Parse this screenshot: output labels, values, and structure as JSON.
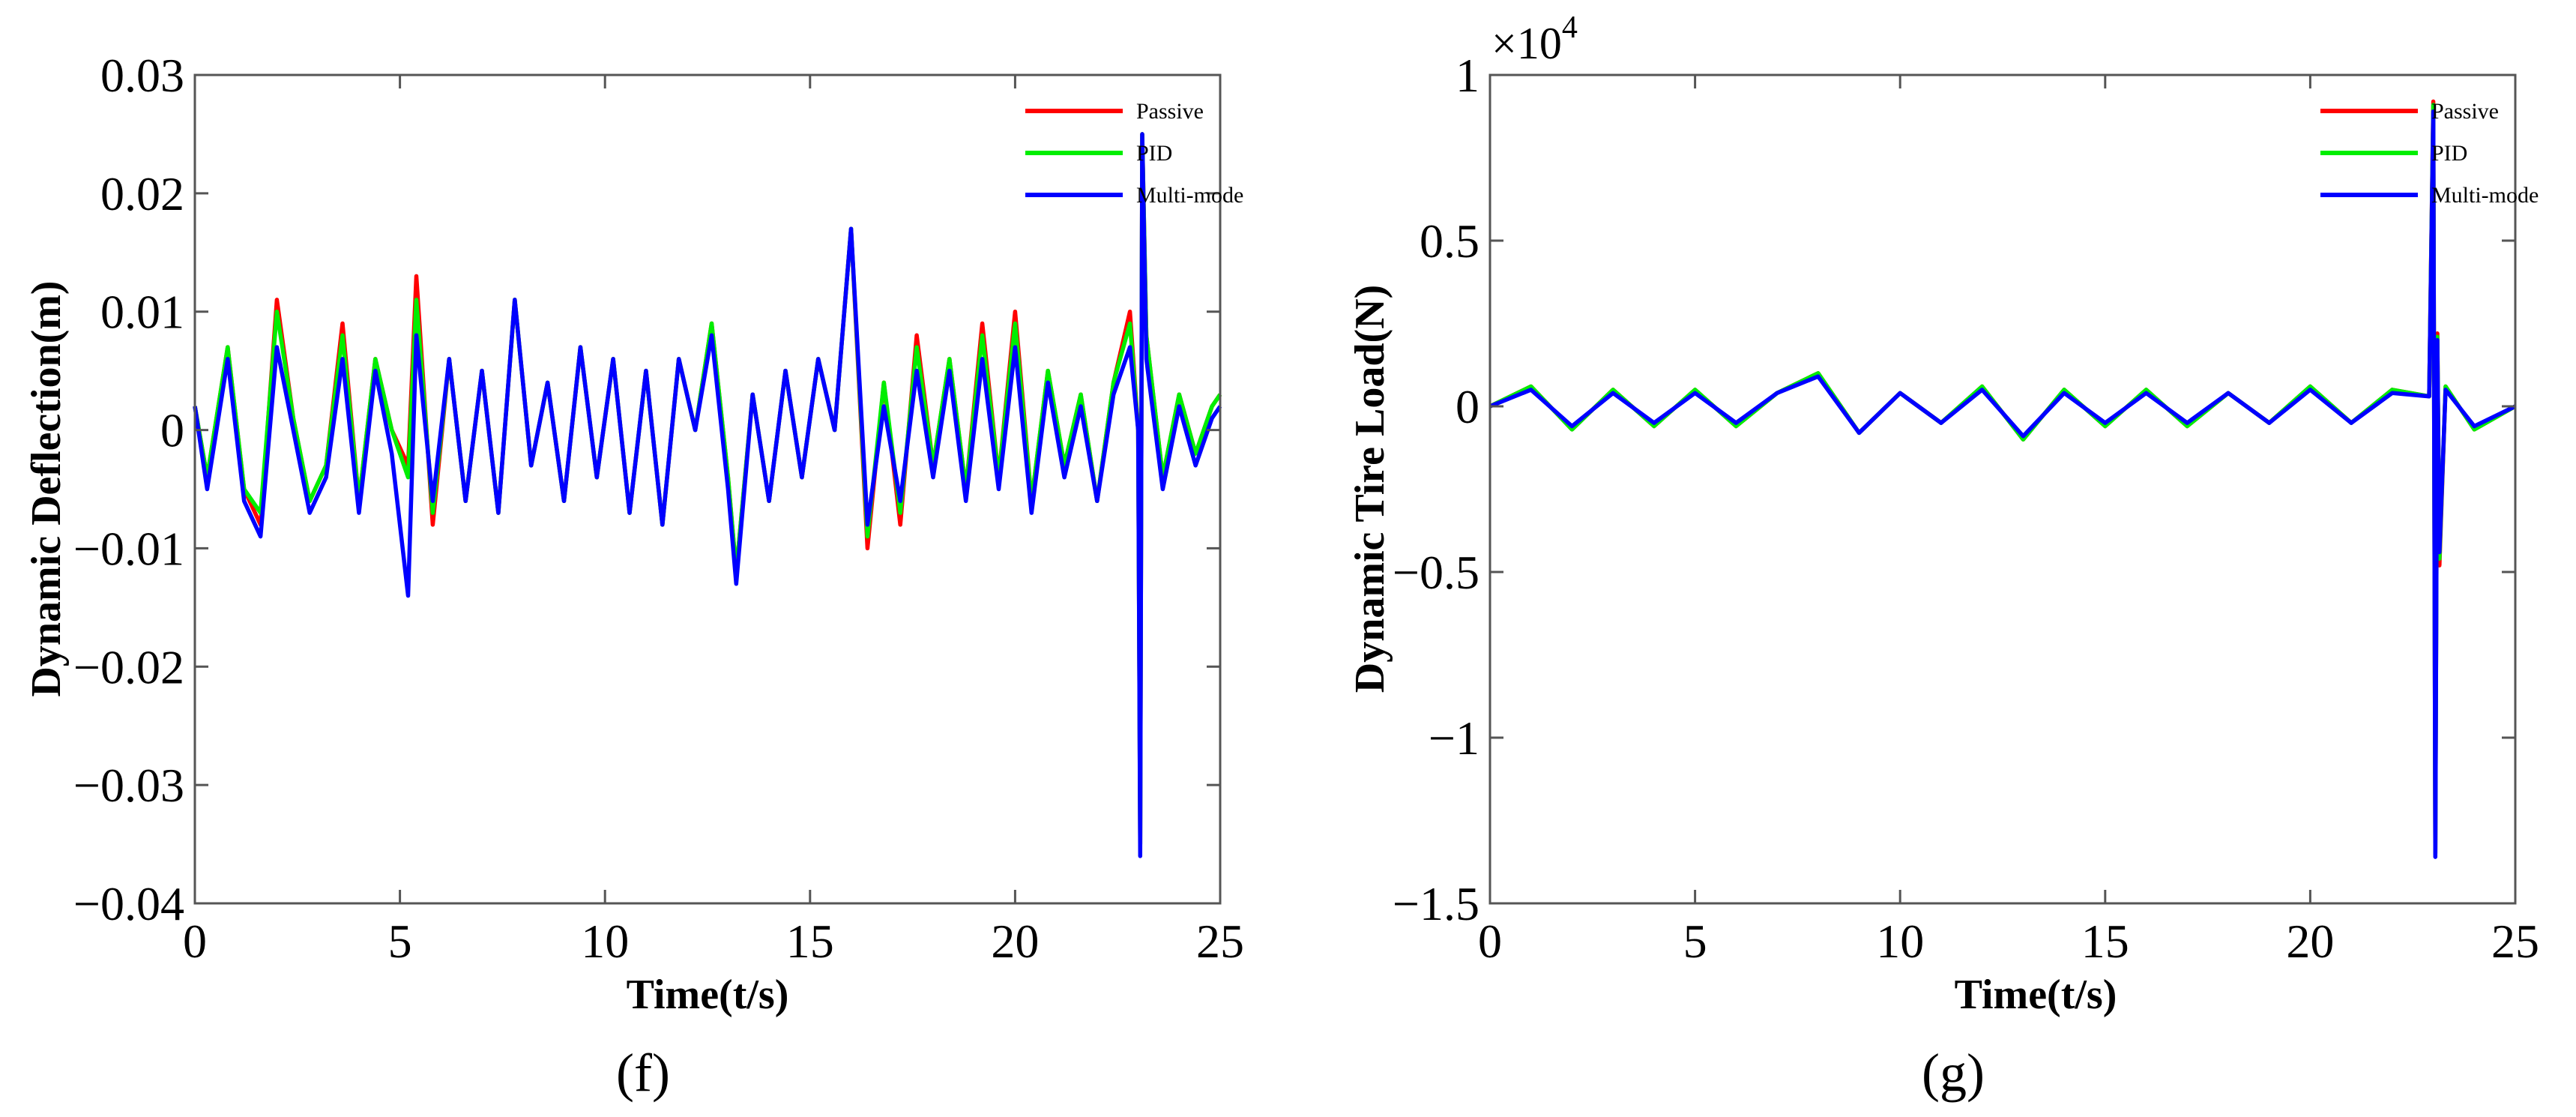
{
  "chart_data": [
    {
      "type": "line",
      "panel_label": "(f)",
      "xlabel": "Time(t/s)",
      "ylabel": "Dynamic Deflection(m)",
      "xlim": [
        0,
        25
      ],
      "ylim": [
        -0.04,
        0.03
      ],
      "xticks": [
        0,
        5,
        10,
        15,
        20,
        25
      ],
      "xtick_labels": [
        "0",
        "5",
        "10",
        "15",
        "20",
        "25"
      ],
      "yticks": [
        0.03,
        0.02,
        0.01,
        0,
        -0.01,
        -0.02,
        -0.03,
        -0.04
      ],
      "ytick_labels": [
        "0.03",
        "0.02",
        "0.01",
        "0",
        "−0.01",
        "−0.02",
        "−0.03",
        "−0.04"
      ],
      "grid": false,
      "legend_position": "top-right",
      "x": [
        0,
        0.3,
        0.8,
        1.2,
        1.6,
        2.0,
        2.4,
        2.8,
        3.2,
        3.6,
        4.0,
        4.4,
        4.8,
        5.2,
        5.4,
        5.8,
        6.2,
        6.6,
        7.0,
        7.4,
        7.8,
        8.2,
        8.6,
        9.0,
        9.4,
        9.8,
        10.2,
        10.6,
        11.0,
        11.4,
        11.8,
        12.2,
        12.6,
        13.0,
        13.2,
        13.6,
        14.0,
        14.4,
        14.8,
        15.2,
        15.6,
        16.0,
        16.4,
        16.8,
        17.2,
        17.6,
        18.0,
        18.4,
        18.8,
        19.2,
        19.6,
        20.0,
        20.4,
        20.8,
        21.2,
        21.6,
        22.0,
        22.4,
        22.8,
        23.0,
        23.05,
        23.1,
        23.2,
        23.6,
        24.0,
        24.4,
        24.8,
        25.0
      ],
      "series": [
        {
          "name": "Passive",
          "color": "#ff0000",
          "values": [
            0.002,
            -0.004,
            0.007,
            -0.005,
            -0.008,
            0.011,
            0.001,
            -0.006,
            -0.003,
            0.009,
            -0.006,
            0.006,
            0.0,
            -0.003,
            0.013,
            -0.008,
            0.006,
            -0.006,
            0.005,
            -0.007,
            0.011,
            -0.003,
            0.004,
            -0.006,
            0.007,
            -0.004,
            0.006,
            -0.007,
            0.005,
            -0.008,
            0.006,
            0.0,
            0.009,
            -0.004,
            -0.012,
            0.003,
            -0.006,
            0.005,
            -0.004,
            0.006,
            0.0,
            0.017,
            -0.01,
            0.004,
            -0.008,
            0.008,
            -0.003,
            0.006,
            -0.005,
            0.009,
            -0.004,
            0.01,
            -0.006,
            0.005,
            -0.003,
            0.003,
            -0.006,
            0.004,
            0.01,
            0.0,
            -0.035,
            0.025,
            0.008,
            -0.004,
            0.003,
            -0.002,
            0.002,
            0.003
          ]
        },
        {
          "name": "PID",
          "color": "#00ee00",
          "values": [
            0.002,
            -0.004,
            0.007,
            -0.005,
            -0.007,
            0.01,
            0.001,
            -0.006,
            -0.003,
            0.008,
            -0.006,
            0.006,
            0.0,
            -0.004,
            0.011,
            -0.007,
            0.006,
            -0.006,
            0.005,
            -0.007,
            0.011,
            -0.003,
            0.004,
            -0.006,
            0.007,
            -0.004,
            0.006,
            -0.007,
            0.005,
            -0.008,
            0.006,
            0.0,
            0.009,
            -0.004,
            -0.012,
            0.003,
            -0.006,
            0.005,
            -0.004,
            0.006,
            0.0,
            0.017,
            -0.009,
            0.004,
            -0.007,
            0.007,
            -0.003,
            0.006,
            -0.005,
            0.008,
            -0.004,
            0.009,
            -0.006,
            0.005,
            -0.003,
            0.003,
            -0.006,
            0.004,
            0.009,
            0.0,
            -0.035,
            0.025,
            0.008,
            -0.004,
            0.003,
            -0.002,
            0.002,
            0.003
          ]
        },
        {
          "name": "Multi-mode",
          "color": "#0000ff",
          "values": [
            0.002,
            -0.005,
            0.006,
            -0.006,
            -0.009,
            0.007,
            0.0,
            -0.007,
            -0.004,
            0.006,
            -0.007,
            0.005,
            -0.002,
            -0.014,
            0.008,
            -0.006,
            0.006,
            -0.006,
            0.005,
            -0.007,
            0.011,
            -0.003,
            0.004,
            -0.006,
            0.007,
            -0.004,
            0.006,
            -0.007,
            0.005,
            -0.008,
            0.006,
            0.0,
            0.008,
            -0.005,
            -0.013,
            0.003,
            -0.006,
            0.005,
            -0.004,
            0.006,
            0.0,
            0.017,
            -0.008,
            0.002,
            -0.006,
            0.005,
            -0.004,
            0.005,
            -0.006,
            0.006,
            -0.005,
            0.007,
            -0.007,
            0.004,
            -0.004,
            0.002,
            -0.006,
            0.003,
            0.007,
            0.0,
            -0.036,
            0.025,
            0.006,
            -0.005,
            0.002,
            -0.003,
            0.001,
            0.002
          ]
        }
      ]
    },
    {
      "type": "line",
      "panel_label": "(g)",
      "xlabel": "Time(t/s)",
      "ylabel": "Dynamic Tire Load(N)",
      "y_multiplier": "×10",
      "y_multiplier_exponent": "4",
      "xlim": [
        0,
        25
      ],
      "ylim": [
        -1.5,
        1
      ],
      "xticks": [
        0,
        5,
        10,
        15,
        20,
        25
      ],
      "xtick_labels": [
        "0",
        "5",
        "10",
        "15",
        "20",
        "25"
      ],
      "yticks": [
        1,
        0.5,
        0,
        -0.5,
        -1,
        -1.5
      ],
      "ytick_labels": [
        "1",
        "0.5",
        "0",
        "−0.5",
        "−1",
        "−1.5"
      ],
      "grid": false,
      "legend_position": "top-right",
      "x": [
        0,
        1,
        2,
        3,
        4,
        5,
        6,
        7,
        8,
        9,
        10,
        11,
        12,
        13,
        14,
        15,
        16,
        17,
        18,
        19,
        20,
        21,
        22,
        22.9,
        23.0,
        23.05,
        23.1,
        23.15,
        23.3,
        24,
        25
      ],
      "series": [
        {
          "name": "Passive",
          "color": "#ff0000",
          "values": [
            0.0,
            0.06,
            -0.07,
            0.05,
            -0.06,
            0.05,
            -0.06,
            0.04,
            0.1,
            -0.08,
            0.04,
            -0.05,
            0.06,
            -0.1,
            0.05,
            -0.06,
            0.05,
            -0.06,
            0.04,
            -0.05,
            0.06,
            -0.05,
            0.05,
            0.03,
            0.92,
            -1.35,
            0.22,
            -0.48,
            0.06,
            -0.07,
            0.0
          ]
        },
        {
          "name": "PID",
          "color": "#00ee00",
          "values": [
            0.0,
            0.06,
            -0.07,
            0.05,
            -0.06,
            0.05,
            -0.06,
            0.04,
            0.1,
            -0.08,
            0.04,
            -0.05,
            0.06,
            -0.1,
            0.05,
            -0.06,
            0.05,
            -0.06,
            0.04,
            -0.05,
            0.06,
            -0.05,
            0.05,
            0.03,
            0.91,
            -1.35,
            0.21,
            -0.46,
            0.06,
            -0.07,
            0.0
          ]
        },
        {
          "name": "Multi-mode",
          "color": "#0000ff",
          "values": [
            0.0,
            0.05,
            -0.06,
            0.04,
            -0.05,
            0.04,
            -0.05,
            0.04,
            0.09,
            -0.08,
            0.04,
            -0.05,
            0.05,
            -0.09,
            0.04,
            -0.05,
            0.04,
            -0.05,
            0.04,
            -0.05,
            0.05,
            -0.05,
            0.04,
            0.03,
            0.89,
            -1.36,
            0.2,
            -0.44,
            0.05,
            -0.06,
            0.0
          ]
        }
      ]
    }
  ]
}
